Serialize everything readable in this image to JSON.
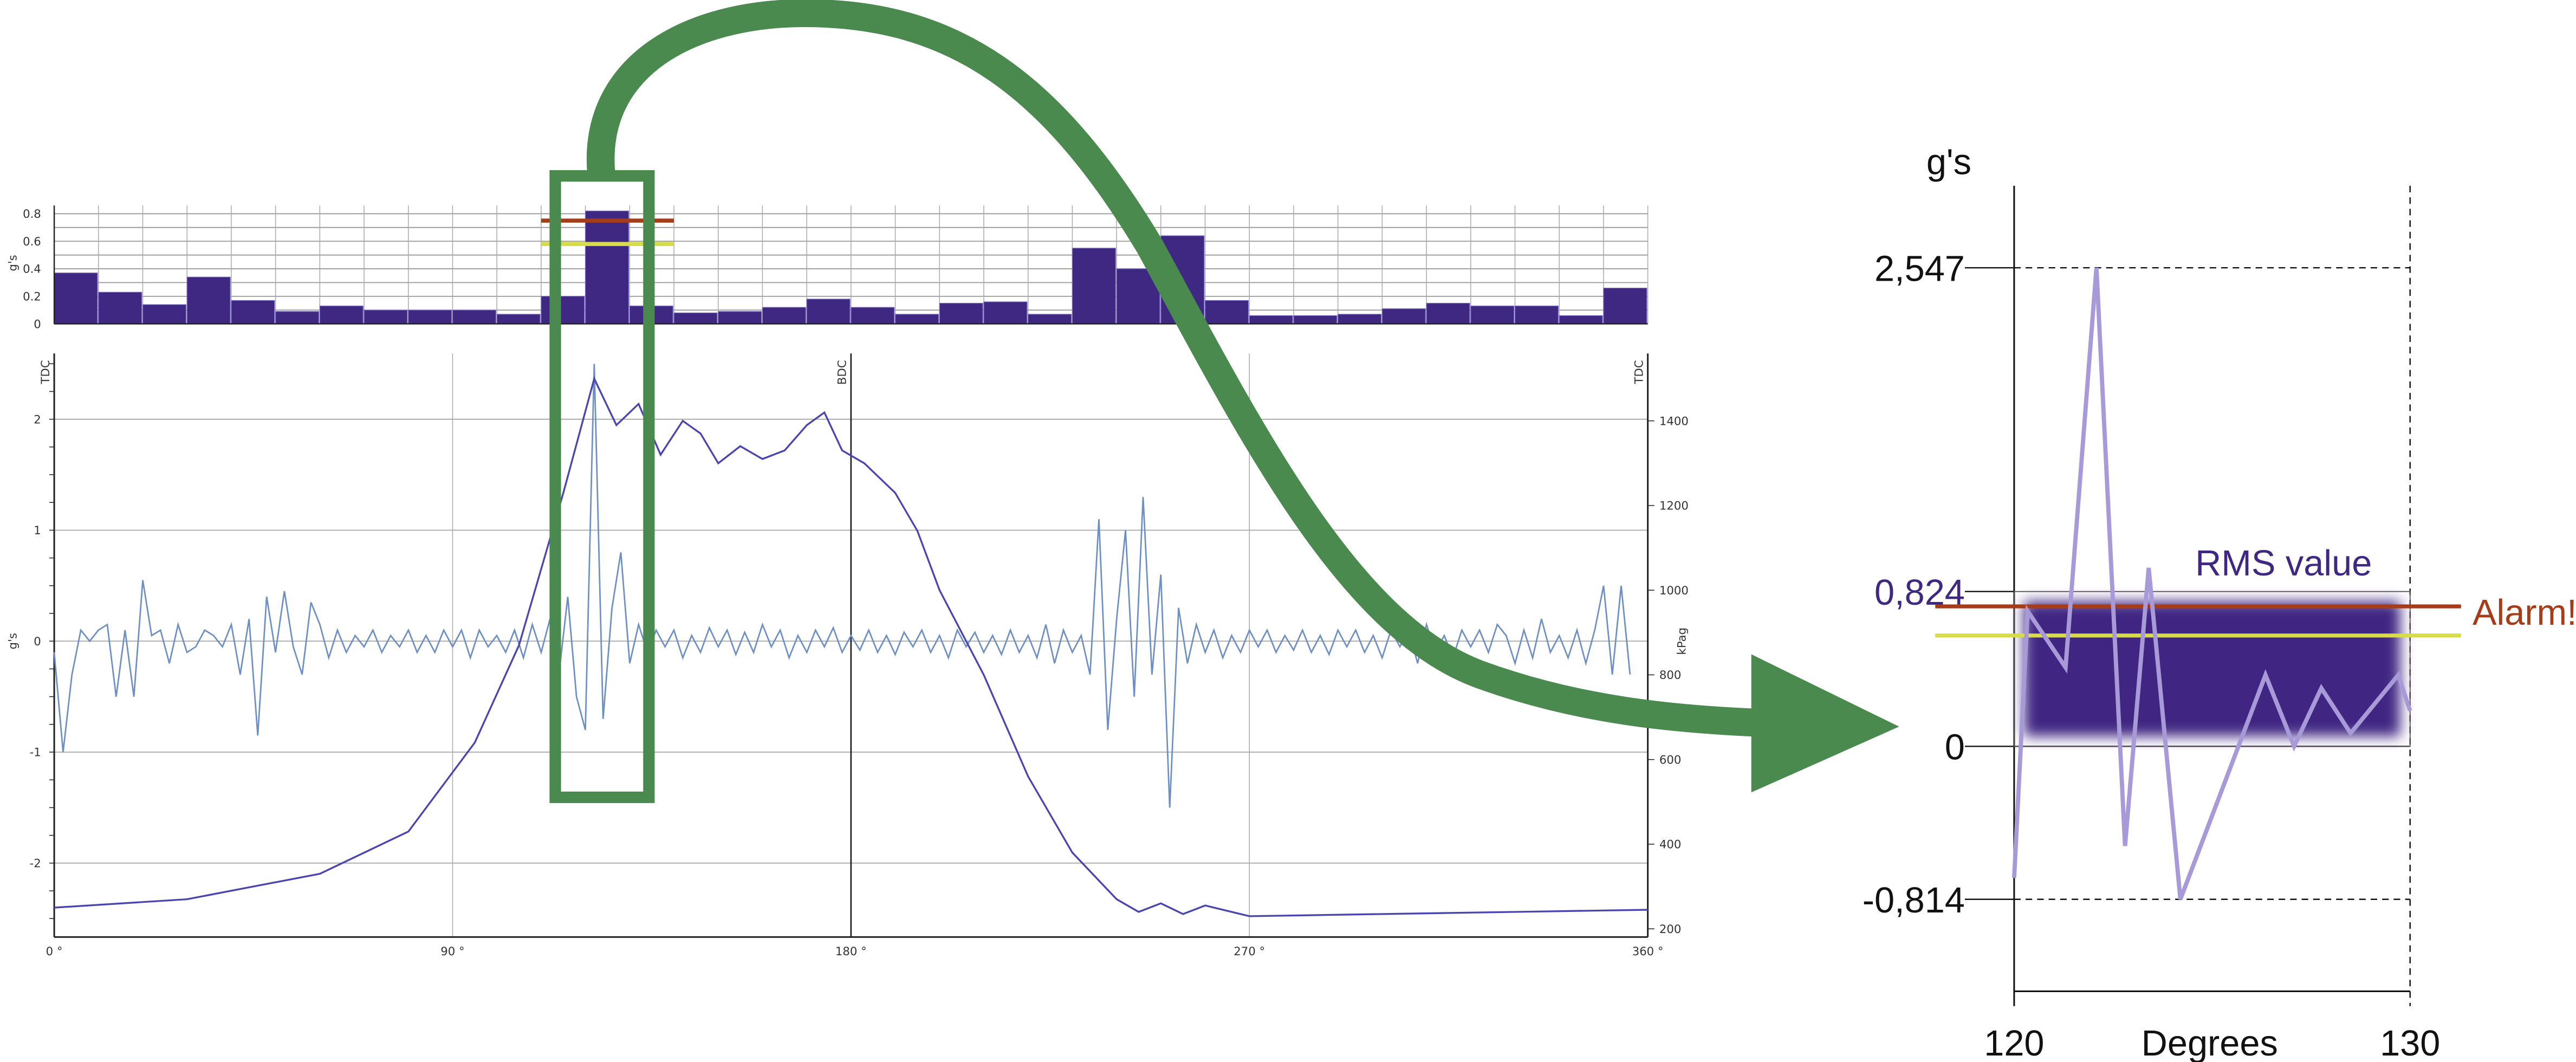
{
  "colors": {
    "bar": "#3f2882",
    "pressure": "#4b45b0",
    "vibration": "#6d8fc4",
    "alarm": "#a53d1a",
    "warning": "#d9dd45",
    "highlight": "#4a8a4f",
    "rms_text": "#3f2882",
    "zoom_line": "#a89ad8"
  },
  "chart_data": [
    {
      "type": "bar",
      "ylabel": "g's",
      "ylim": [
        0,
        0.85
      ],
      "yticks": [
        "0",
        "0.2",
        "0.4",
        "0.6",
        "0.8"
      ],
      "bin_width_deg": 10,
      "values": [
        0.37,
        0.23,
        0.14,
        0.34,
        0.17,
        0.09,
        0.13,
        0.1,
        0.1,
        0.1,
        0.07,
        0.2,
        0.82,
        0.13,
        0.08,
        0.09,
        0.12,
        0.18,
        0.12,
        0.07,
        0.15,
        0.16,
        0.07,
        0.55,
        0.4,
        0.64,
        0.17,
        0.06,
        0.06,
        0.07,
        0.11,
        0.15,
        0.13,
        0.13,
        0.06,
        0.26
      ],
      "alarm_level": 0.75,
      "warning_level": 0.58,
      "threshold_span_deg": [
        110,
        140
      ],
      "grid": true
    },
    {
      "type": "line",
      "ylabel": "g's",
      "y2label": "kPag",
      "xlim": [
        0,
        360
      ],
      "ylim": [
        -2.65,
        2.6
      ],
      "y2lim": [
        195,
        1530
      ],
      "xticks": [
        "0 °",
        "90 °",
        "180 °",
        "270 °",
        "360 °"
      ],
      "yticks": [
        "2",
        "1",
        "0",
        "-1",
        "-2"
      ],
      "y2ticks": [
        "1400",
        "1200",
        "1000",
        "800",
        "600",
        "400",
        "200"
      ],
      "markers": [
        {
          "deg": 0,
          "label": "TDC"
        },
        {
          "deg": 180,
          "label": "BDC"
        },
        {
          "deg": 360,
          "label": "TDC"
        }
      ],
      "grid": true,
      "vibration_step_deg": 2,
      "vibration": [
        -0.1,
        -1.0,
        -0.3,
        0.1,
        0.0,
        0.1,
        0.15,
        -0.5,
        0.1,
        -0.5,
        0.55,
        0.05,
        0.1,
        -0.2,
        0.15,
        -0.1,
        -0.05,
        0.1,
        0.05,
        -0.05,
        0.15,
        -0.3,
        0.2,
        -0.85,
        0.4,
        -0.1,
        0.45,
        -0.05,
        -0.3,
        0.35,
        0.15,
        -0.15,
        0.1,
        -0.1,
        0.05,
        -0.05,
        0.1,
        -0.1,
        0.05,
        -0.05,
        0.1,
        -0.1,
        0.05,
        -0.1,
        0.1,
        -0.05,
        0.1,
        -0.15,
        0.1,
        -0.05,
        0.05,
        -0.1,
        0.1,
        -0.15,
        0.15,
        -0.1,
        0.2,
        -0.3,
        0.4,
        -0.5,
        -0.8,
        2.5,
        -0.7,
        0.3,
        0.8,
        -0.2,
        0.15,
        -0.1,
        0.1,
        -0.05,
        0.1,
        -0.15,
        0.05,
        -0.1,
        0.12,
        -0.05,
        0.1,
        -0.12,
        0.08,
        -0.1,
        0.15,
        -0.05,
        0.1,
        -0.15,
        0.05,
        -0.1,
        0.1,
        -0.05,
        0.12,
        -0.1,
        0.05,
        -0.08,
        0.1,
        -0.1,
        0.05,
        -0.12,
        0.08,
        -0.05,
        0.1,
        -0.1,
        0.05,
        -0.15,
        0.1,
        -0.05,
        0.08,
        -0.1,
        0.05,
        -0.12,
        0.1,
        -0.1,
        0.05,
        -0.15,
        0.15,
        -0.2,
        0.1,
        -0.1,
        0.05,
        -0.3,
        1.1,
        -0.8,
        0.2,
        1.0,
        -0.5,
        1.3,
        -0.3,
        0.6,
        -1.5,
        0.3,
        -0.2,
        0.15,
        -0.1,
        0.1,
        -0.15,
        0.05,
        -0.1,
        0.1,
        -0.05,
        0.1,
        -0.1,
        0.05,
        -0.08,
        0.1,
        -0.1,
        0.05,
        -0.12,
        0.1,
        -0.05,
        0.1,
        -0.1,
        0.05,
        -0.15,
        0.1,
        -0.05,
        0.1,
        -0.2,
        0.15,
        -0.1,
        0.05,
        -0.15,
        0.1,
        -0.05,
        0.1,
        -0.1,
        0.15,
        0.05,
        -0.2,
        0.1,
        -0.15,
        0.2,
        -0.1,
        0.05,
        -0.15,
        0.1,
        -0.2,
        0.1,
        0.5,
        -0.3,
        0.5,
        -0.3
      ],
      "pressure": [
        [
          0,
          250
        ],
        [
          30,
          270
        ],
        [
          60,
          330
        ],
        [
          80,
          430
        ],
        [
          95,
          640
        ],
        [
          105,
          870
        ],
        [
          115,
          1230
        ],
        [
          122,
          1500
        ],
        [
          127,
          1390
        ],
        [
          132,
          1440
        ],
        [
          137,
          1320
        ],
        [
          142,
          1400
        ],
        [
          146,
          1370
        ],
        [
          150,
          1300
        ],
        [
          155,
          1340
        ],
        [
          160,
          1310
        ],
        [
          165,
          1330
        ],
        [
          170,
          1390
        ],
        [
          174,
          1420
        ],
        [
          178,
          1330
        ],
        [
          183,
          1300
        ],
        [
          190,
          1230
        ],
        [
          195,
          1140
        ],
        [
          200,
          1000
        ],
        [
          210,
          800
        ],
        [
          220,
          560
        ],
        [
          230,
          380
        ],
        [
          240,
          270
        ],
        [
          245,
          240
        ],
        [
          250,
          260
        ],
        [
          255,
          235
        ],
        [
          260,
          255
        ],
        [
          270,
          230
        ],
        [
          300,
          235
        ],
        [
          330,
          240
        ],
        [
          360,
          245
        ]
      ]
    },
    {
      "type": "line",
      "title": "",
      "ylabel": "g's",
      "xlabel": "Degrees",
      "xlim": [
        120,
        130
      ],
      "xticks": [
        "120",
        "130"
      ],
      "ylim": [
        -1.3,
        2.9
      ],
      "yticks": [
        {
          "value": 2.547,
          "label": "2,547"
        },
        {
          "value": 0.824,
          "label": "0,824"
        },
        {
          "value": 0,
          "label": "0"
        },
        {
          "value": -0.814,
          "label": "-0,814"
        }
      ],
      "rms_value": 0.824,
      "rms_label": "RMS value",
      "alarm_level": 0.745,
      "warning_level": 0.59,
      "alarm_label": "Alarm!",
      "points": [
        [
          120,
          -0.7
        ],
        [
          120.34,
          0.72
        ],
        [
          121.3,
          0.42
        ],
        [
          122.08,
          2.547
        ],
        [
          122.8,
          -0.53
        ],
        [
          123.4,
          0.95
        ],
        [
          124.2,
          -0.814
        ],
        [
          126.35,
          0.38
        ],
        [
          127.07,
          0.0
        ],
        [
          127.76,
          0.31
        ],
        [
          128.5,
          0.07
        ],
        [
          129.7,
          0.38
        ],
        [
          130,
          0.19
        ]
      ]
    }
  ]
}
